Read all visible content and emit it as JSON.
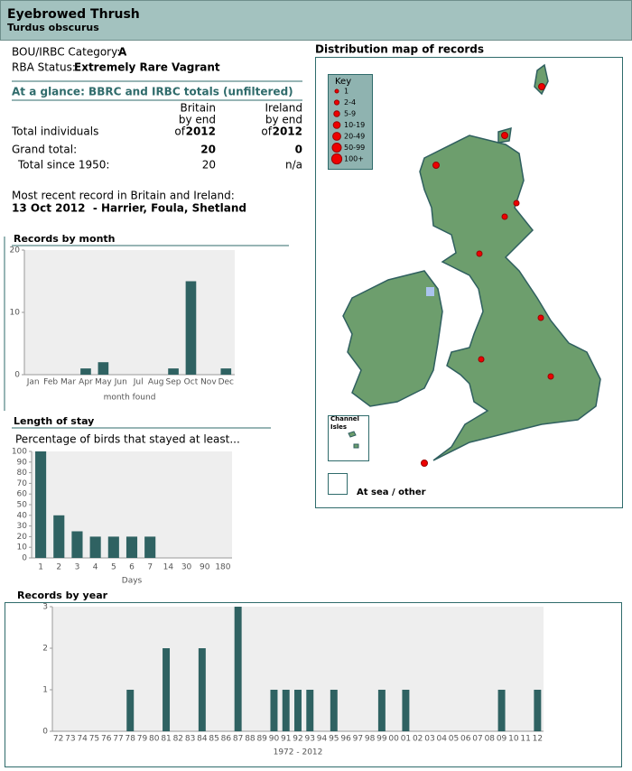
{
  "header": {
    "title": "Eyebrowed Thrush",
    "subtitle": "Turdus obscurus"
  },
  "info": {
    "category_label": "BOU/IRBC Category:",
    "category": "A",
    "status_label": "RBA Status:",
    "status": "Extremely Rare Vagrant"
  },
  "glance": {
    "title": "At a glance: BBRC and IRBC totals (unfiltered)",
    "row_header": "Total individuals",
    "columns": [
      {
        "lines": [
          "Britain",
          "by end",
          "of"
        ],
        "year": "2012"
      },
      {
        "lines": [
          "Ireland",
          "by end",
          "of"
        ],
        "year": "2012"
      }
    ],
    "rows": [
      [
        "Grand total:",
        20,
        0
      ],
      [
        "Total since 1950:",
        20,
        "n/a"
      ]
    ]
  },
  "recent": {
    "label": "Most recent record in Britain and Ireland:",
    "record": "13 Oct 2012  - Harrier, Foula, Shetland"
  },
  "map": {
    "title": "Distribution map of records",
    "key_title": "Key",
    "key": [
      "1",
      "2-4",
      "5-9",
      "10-19",
      "20-49",
      "50-99",
      "100+"
    ],
    "channel": [
      "Channel",
      "Isles"
    ],
    "sea": "At sea / other"
  },
  "chart_data": [
    {
      "type": "bar",
      "title": "Records by month",
      "categories": [
        "Jan",
        "Feb",
        "Mar",
        "Apr",
        "May",
        "Jun",
        "Jul",
        "Aug",
        "Sep",
        "Oct",
        "Nov",
        "Dec"
      ],
      "values": [
        0,
        0,
        0,
        1,
        2,
        0,
        0,
        0,
        1,
        15,
        0,
        1
      ],
      "color": "#2f6262",
      "ylim": [
        0,
        20
      ],
      "yticks": [
        0,
        10,
        20
      ],
      "x_label": "month found"
    },
    {
      "type": "bar",
      "title": "Length of stay",
      "subtitle": "Percentage of birds that stayed at least...",
      "categories": [
        "1",
        "2",
        "3",
        "4",
        "5",
        "6",
        "7",
        "14",
        "30",
        "90",
        "180"
      ],
      "values": [
        100,
        40,
        25,
        20,
        20,
        20,
        20,
        0,
        0,
        0,
        0
      ],
      "color": "#2f6262",
      "ylim": [
        0,
        100
      ],
      "yticks": [
        0,
        10,
        20,
        30,
        40,
        50,
        60,
        70,
        80,
        90,
        100
      ],
      "x_label": "Days"
    },
    {
      "type": "bar",
      "title": "Records by year",
      "categories": [
        "72",
        "73",
        "74",
        "75",
        "76",
        "77",
        "78",
        "79",
        "80",
        "81",
        "82",
        "83",
        "84",
        "85",
        "86",
        "87",
        "88",
        "89",
        "90",
        "91",
        "92",
        "93",
        "94",
        "95",
        "96",
        "97",
        "98",
        "99",
        "00",
        "01",
        "02",
        "03",
        "04",
        "05",
        "06",
        "07",
        "08",
        "09",
        "10",
        "11",
        "12"
      ],
      "values": [
        0,
        0,
        0,
        0,
        0,
        0,
        1,
        0,
        0,
        2,
        0,
        0,
        2,
        0,
        0,
        3,
        0,
        0,
        1,
        1,
        1,
        1,
        0,
        1,
        0,
        0,
        0,
        1,
        0,
        1,
        0,
        0,
        0,
        0,
        0,
        0,
        0,
        1,
        0,
        0,
        1
      ],
      "color": "#2f6262",
      "ylim": [
        0,
        3
      ],
      "yticks": [
        0,
        1,
        2,
        3
      ],
      "x_label": "1972 - 2012"
    }
  ]
}
